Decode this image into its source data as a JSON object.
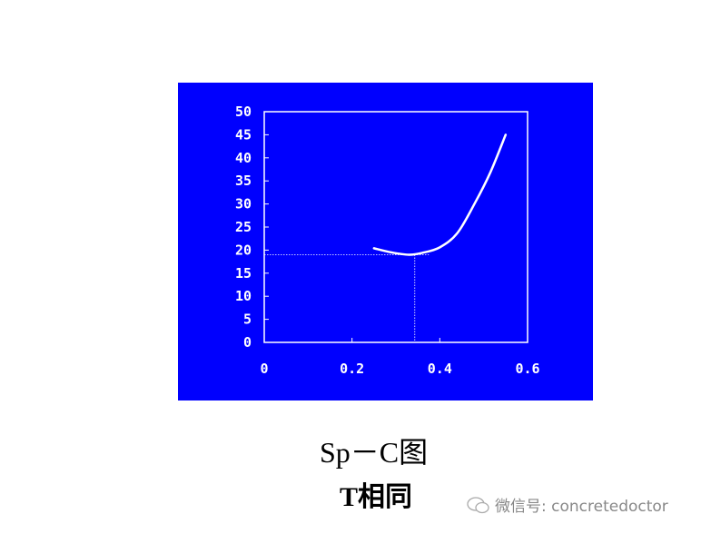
{
  "chart_data": {
    "type": "line",
    "title": "",
    "xlabel": "",
    "ylabel": "",
    "xlim": [
      0,
      0.6
    ],
    "ylim": [
      0,
      50
    ],
    "x_ticks": [
      "0",
      "0.2",
      "0.4",
      "0.6"
    ],
    "y_ticks": [
      "0",
      "5",
      "10",
      "15",
      "20",
      "25",
      "30",
      "35",
      "40",
      "45",
      "50"
    ],
    "grid": false,
    "background_color": "#0000fe",
    "line_color": "#ffffff",
    "series": [
      {
        "x": [
          0.25,
          0.29,
          0.33,
          0.36,
          0.4,
          0.44,
          0.48,
          0.515,
          0.55
        ],
        "y": [
          20.4,
          19.5,
          19.0,
          19.4,
          20.6,
          23.7,
          30.2,
          36.8,
          45.0
        ]
      }
    ],
    "reference_lines": {
      "x": 0.343,
      "y": 19.0
    }
  },
  "caption": {
    "line1": "Sp－C图",
    "line2": "T相同"
  },
  "watermark": {
    "text": "微信号: concretedoctor",
    "icon": "wechat-icon"
  }
}
